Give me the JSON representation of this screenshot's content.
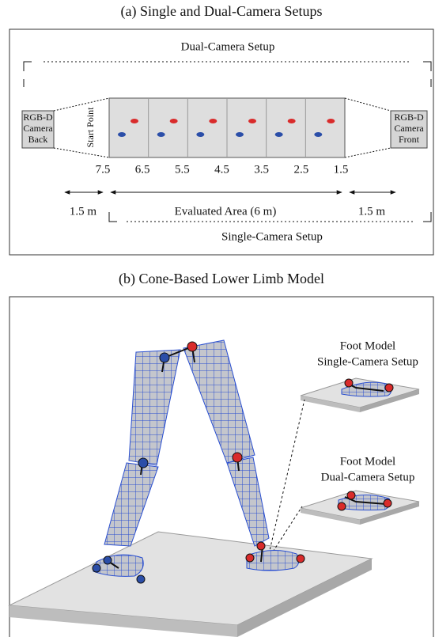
{
  "panel_a": {
    "title": "(a) Single and Dual-Camera Setups",
    "dual_label": "Dual-Camera Setup",
    "camera_back": [
      "RGB-D",
      "Camera",
      "Back"
    ],
    "start_point": "Start Point",
    "camera_front": [
      "RGB-D",
      "Camera",
      "Front"
    ],
    "distances": [
      "7.5",
      "6.5",
      "5.5",
      "4.5",
      "3.5",
      "2.5",
      "1.5"
    ],
    "left_span": "1.5 m",
    "evaluated_area": "Evaluated Area (6 m)",
    "right_span": "1.5 m",
    "single_label": "Single-Camera Setup"
  },
  "panel_b": {
    "title": "(b) Cone-Based Lower Limb Model",
    "foot_single": [
      "Foot Model",
      "Single-Camera Setup"
    ],
    "foot_dual": [
      "Foot Model",
      "Dual-Camera Setup"
    ]
  }
}
